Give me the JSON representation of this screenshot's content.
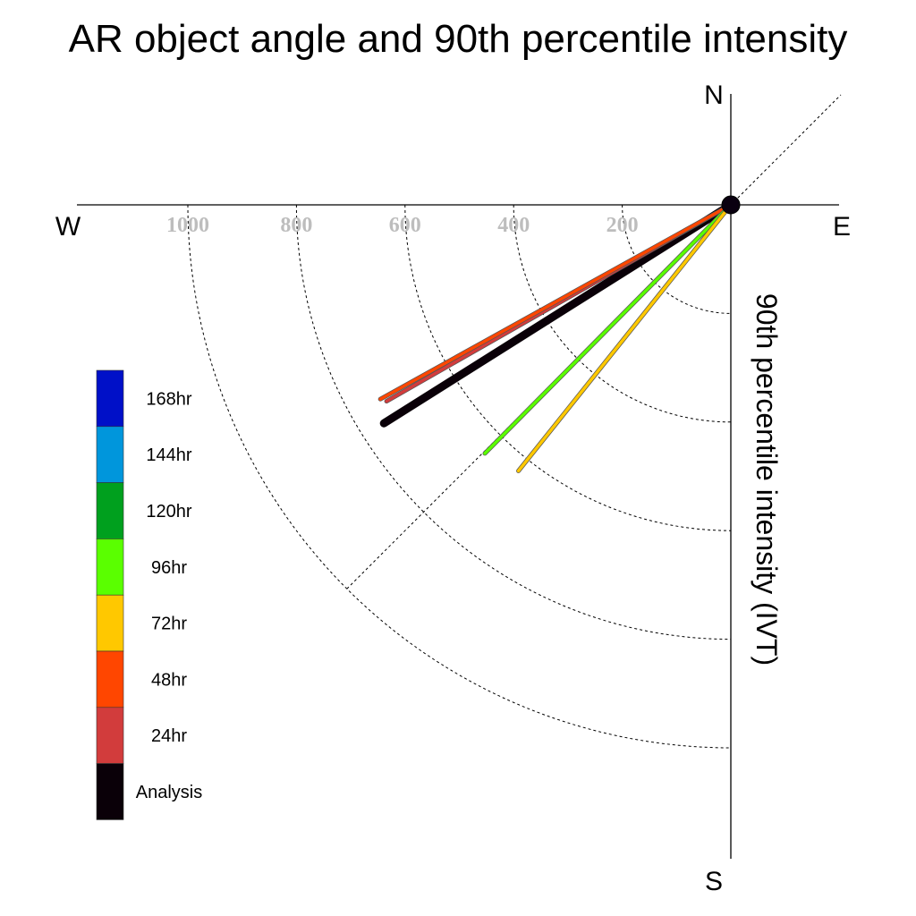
{
  "chart_data": {
    "type": "polar-vector",
    "title": "AR object angle and 90th percentile intensity",
    "ylabel": "90th percentile intensity (IVT)",
    "compass": {
      "n": "N",
      "e": "E",
      "s": "S",
      "w": "W"
    },
    "radial_ticks": [
      {
        "value": 200,
        "label": "200"
      },
      {
        "value": 400,
        "label": "400"
      },
      {
        "value": 600,
        "label": "600"
      },
      {
        "value": 800,
        "label": "800"
      },
      {
        "value": 1000,
        "label": "1000"
      }
    ],
    "legend": [
      {
        "label": "168hr",
        "color": "#0010c8"
      },
      {
        "label": "144hr",
        "color": "#0096dc"
      },
      {
        "label": "120hr",
        "color": "#00a01e"
      },
      {
        "label": "96hr",
        "color": "#5aff00"
      },
      {
        "label": "72hr",
        "color": "#ffc800"
      },
      {
        "label": "48hr",
        "color": "#ff4600"
      },
      {
        "label": "24hr",
        "color": "#d23c3c"
      },
      {
        "label": "Analysis",
        "color": "#0a0008"
      }
    ],
    "vectors": [
      {
        "lead": "Analysis",
        "direction_deg": 237.8,
        "intensity": 755,
        "color": "#0a0008"
      },
      {
        "lead": "24hr",
        "direction_deg": 240.3,
        "intensity": 730,
        "color": "#d23c3c"
      },
      {
        "lead": "48hr",
        "direction_deg": 241.0,
        "intensity": 738,
        "color": "#ff4600"
      },
      {
        "lead": "96hr",
        "direction_deg": 224.7,
        "intensity": 644,
        "color": "#5aff00"
      },
      {
        "lead": "72hr",
        "direction_deg": 218.6,
        "intensity": 627,
        "color": "#ffc800"
      }
    ]
  }
}
